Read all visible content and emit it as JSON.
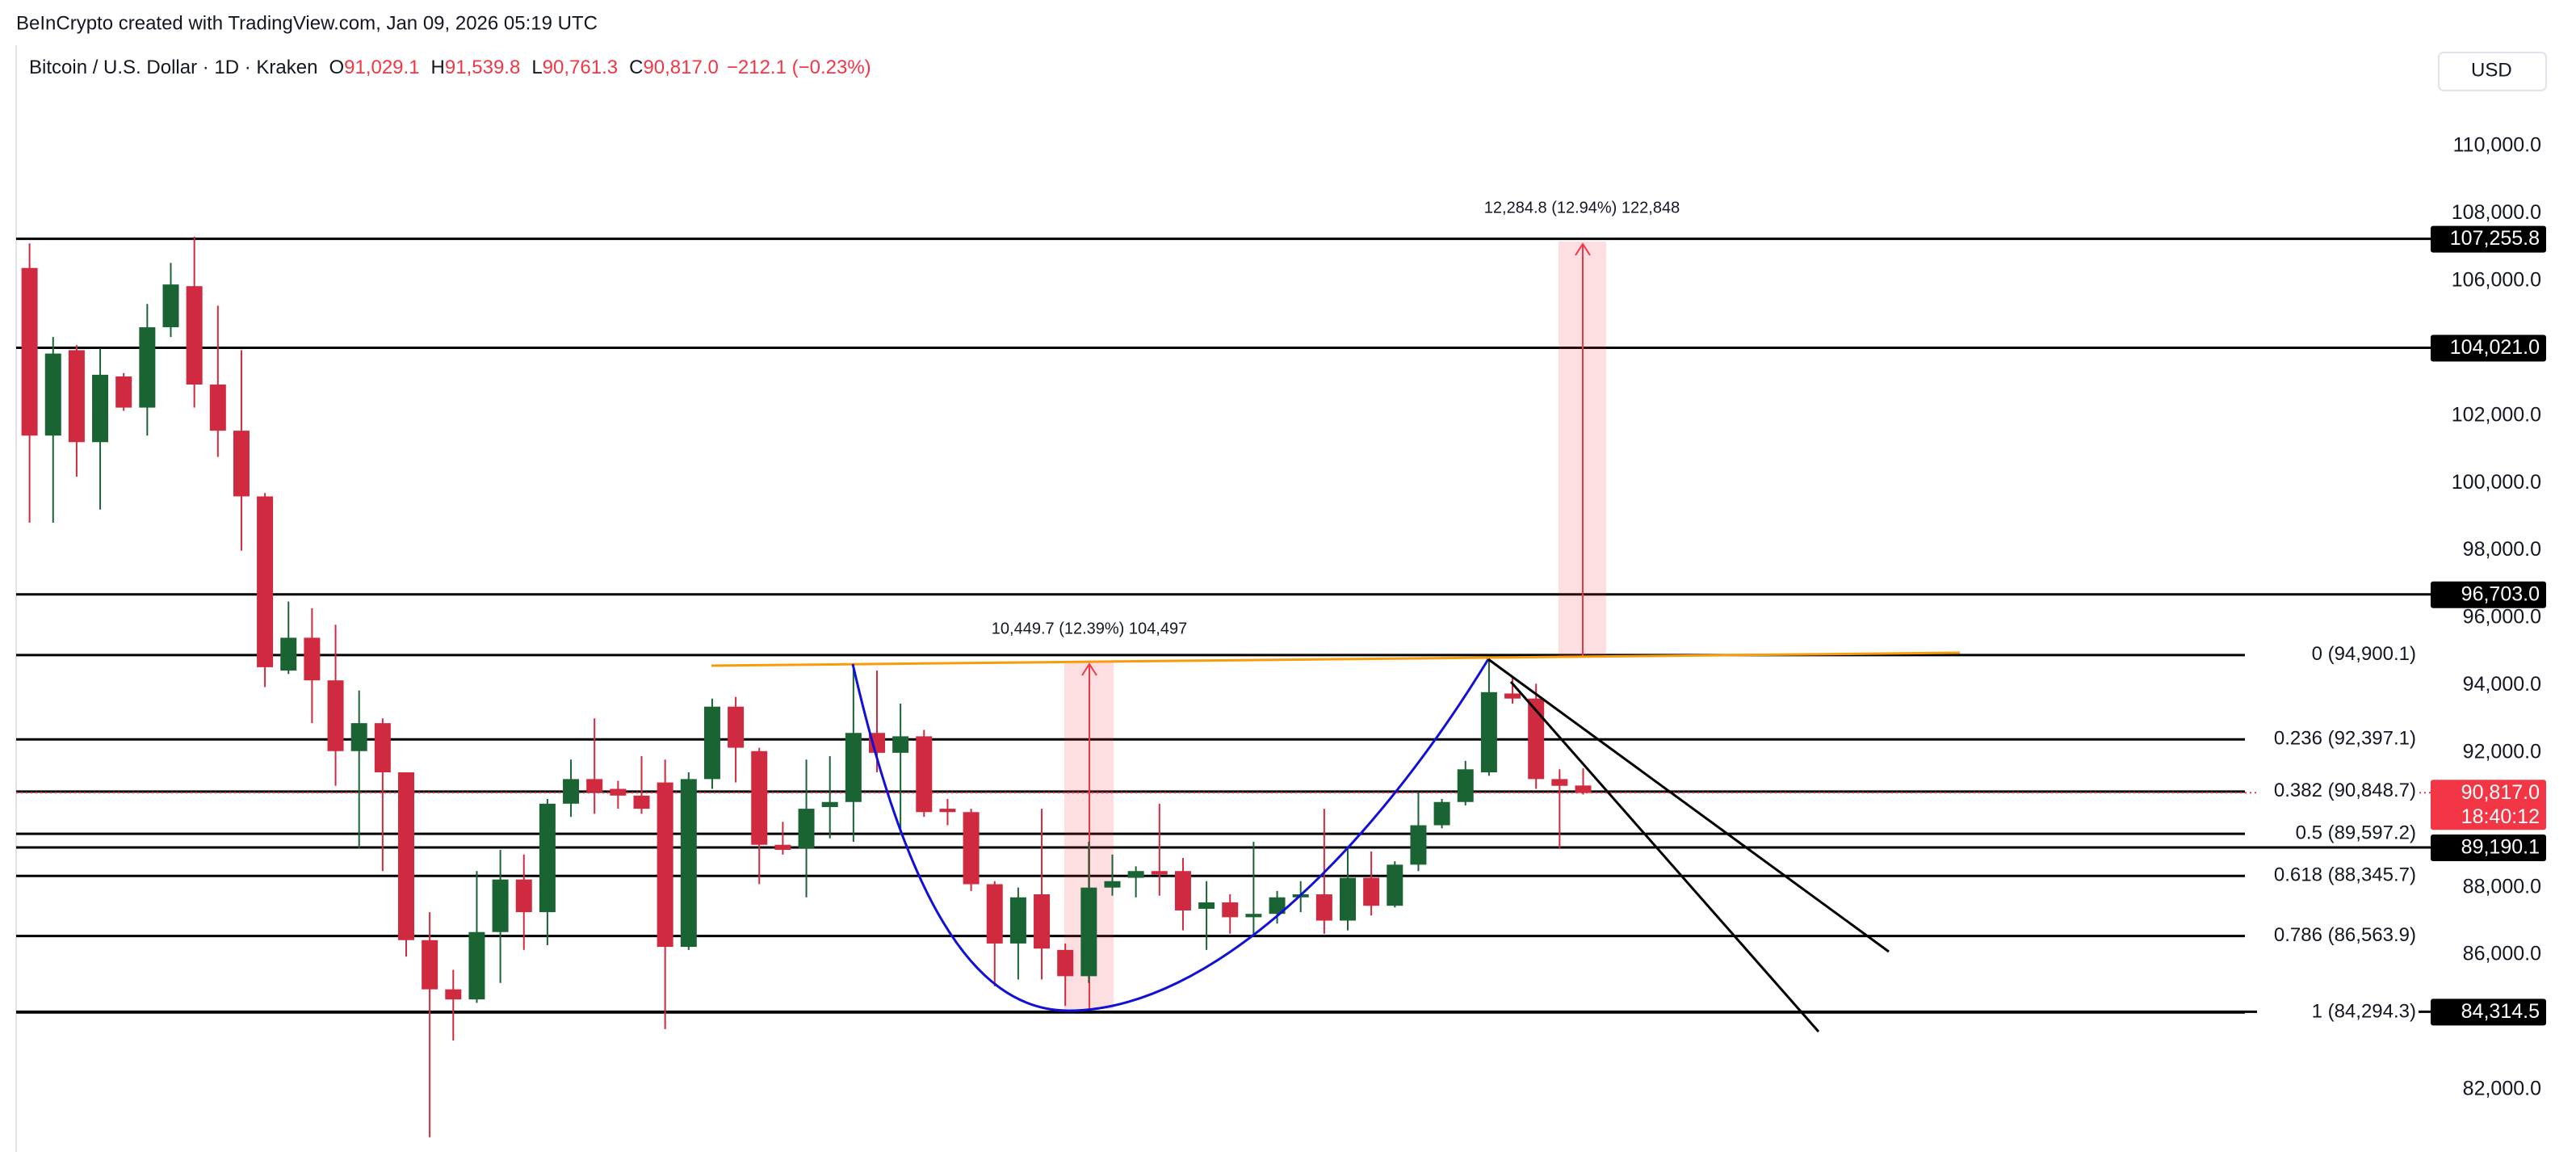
{
  "header": {
    "credit": "BeInCrypto created with TradingView.com, Jan 09, 2026 05:19 UTC",
    "symbol": "Bitcoin / U.S. Dollar · 1D · Kraken",
    "ohlc": [
      {
        "key": "O",
        "value": "91,029.1"
      },
      {
        "key": "H",
        "value": "91,539.8"
      },
      {
        "key": "L",
        "value": "90,761.3"
      },
      {
        "key": "C",
        "value": "90,817.0"
      }
    ],
    "change": "−212.1 (−0.23%)",
    "currency": "USD"
  },
  "chart_data": {
    "type": "candlestick",
    "up_color": "#1a6434",
    "down_color": "#cf2a3f",
    "open": [
      106390,
      101415,
      103950,
      101220,
      103170,
      102245,
      104630,
      105850,
      102930,
      101560,
      99610,
      94440,
      95415,
      94150,
      92050,
      92880,
      91420,
      86440,
      84980,
      84680,
      86680,
      88240,
      87270,
      90490,
      91220,
      90930,
      90730,
      91120,
      86240,
      91220,
      93370,
      92050,
      89270,
      89170,
      90390,
      90540,
      92590,
      92000,
      92490,
      90340,
      90240,
      88100,
      86340,
      87800,
      86150,
      85370,
      88000,
      88290,
      88490,
      88490,
      87370,
      87560,
      87120,
      87220,
      87710,
      87800,
      87020,
      88290,
      87460,
      88680,
      89850,
      90540,
      91420,
      93760,
      93610,
      91220,
      91029.1
    ],
    "high": [
      107120,
      104340,
      104100,
      104000,
      103270,
      105320,
      106540,
      107320,
      105270,
      103950,
      99710,
      96490,
      96290,
      95800,
      93850,
      93020,
      91420,
      87270,
      85560,
      88490,
      89120,
      88980,
      90630,
      91800,
      93020,
      91170,
      91900,
      91800,
      91420,
      93610,
      93660,
      92150,
      89950,
      91800,
      91900,
      94630,
      94440,
      93460,
      92680,
      90630,
      90340,
      88190,
      88000,
      90340,
      86340,
      89360,
      88980,
      88630,
      90490,
      88880,
      88190,
      87800,
      89360,
      87900,
      88190,
      90340,
      89220,
      89070,
      88780,
      90830,
      90630,
      91760,
      94730,
      94240,
      94050,
      91510,
      91539.8
    ],
    "low": [
      98830,
      98830,
      100195,
      99220,
      102150,
      101415,
      104340,
      102245,
      100780,
      98000,
      93950,
      94340,
      92880,
      91020,
      89170,
      88490,
      85950,
      80590,
      83460,
      84580,
      85170,
      86150,
      86290,
      90100,
      90190,
      90340,
      90190,
      83800,
      86150,
      90930,
      91120,
      88100,
      88980,
      87710,
      89460,
      89360,
      91420,
      89560,
      90100,
      89850,
      87900,
      85070,
      85270,
      85270,
      84490,
      85170,
      87760,
      87710,
      87760,
      86730,
      86150,
      86630,
      86630,
      86930,
      87270,
      86630,
      86730,
      87170,
      87410,
      88490,
      89760,
      90440,
      91320,
      93460,
      90930,
      89170,
      90761.3
    ],
    "close": [
      101415,
      103850,
      101220,
      103220,
      102245,
      104630,
      105900,
      102930,
      101560,
      99610,
      94540,
      95415,
      94150,
      92050,
      92880,
      91420,
      86440,
      84980,
      84680,
      86680,
      88240,
      87270,
      90490,
      91220,
      90830,
      90730,
      90340,
      86240,
      91220,
      93370,
      92150,
      89270,
      89120,
      90340,
      90540,
      92590,
      92000,
      92490,
      90240,
      90240,
      88100,
      86340,
      87710,
      86190,
      85370,
      88000,
      88190,
      88490,
      88390,
      87320,
      87560,
      87120,
      87220,
      87710,
      87800,
      87020,
      88290,
      87460,
      88680,
      89850,
      90540,
      91510,
      93800,
      93610,
      91220,
      91020,
      90817.0
    ],
    "ylim": [
      80200,
      113000
    ],
    "yticks": [
      {
        "value": 82000,
        "label": "82,000.0"
      },
      {
        "value": 86000,
        "label": "86,000.0"
      },
      {
        "value": 88000,
        "label": "88,000.0"
      },
      {
        "value": 92000,
        "label": "92,000.0"
      },
      {
        "value": 94000,
        "label": "94,000.0"
      },
      {
        "value": 96000,
        "label": "96,000.0"
      },
      {
        "value": 98000,
        "label": "98,000.0"
      },
      {
        "value": 100000,
        "label": "100,000.0"
      },
      {
        "value": 102000,
        "label": "102,000.0"
      },
      {
        "value": 104000,
        "label": "104,000.0"
      },
      {
        "value": 106000,
        "label": "106,000.0"
      },
      {
        "value": 108000,
        "label": "108,000.0"
      },
      {
        "value": 110000,
        "label": "110,000.0"
      }
    ],
    "price_lines": [
      {
        "value": 107255.8,
        "label": "107,255.8"
      },
      {
        "value": 104021.0,
        "label": "104,021.0"
      },
      {
        "value": 96703.0,
        "label": "96,703.0"
      },
      {
        "value": 89190.1,
        "label": "89,190.1"
      },
      {
        "value": 84314.5,
        "label": "84,314.5"
      }
    ],
    "fib_levels": [
      {
        "value": 94900.1,
        "label": "0 (94,900.1)"
      },
      {
        "value": 92397.1,
        "label": "0.236 (92,397.1)"
      },
      {
        "value": 90848.7,
        "label": "0.382 (90,848.7)"
      },
      {
        "value": 89597.2,
        "label": "0.5 (89,597.2)"
      },
      {
        "value": 88345.7,
        "label": "0.618 (88,345.7)"
      },
      {
        "value": 86563.9,
        "label": "0.786 (86,563.9)"
      },
      {
        "value": 84294.3,
        "label": "1 (84,294.3)"
      }
    ],
    "last_price": {
      "value": 90817.0,
      "label": "90,817.0",
      "countdown": "18:40:12",
      "color": "#f23645"
    },
    "annotations": [
      "10,449.7 (12.39%) 104,497",
      "12,284.8 (12.94%) 122,848"
    ]
  }
}
